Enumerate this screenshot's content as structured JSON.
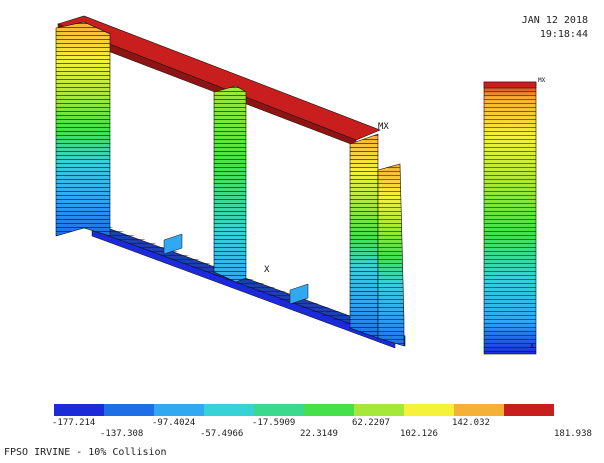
{
  "header": {
    "date": "JAN 12 2018",
    "time": "19:18:44"
  },
  "markers": {
    "max": "MX",
    "min": "X"
  },
  "legend": {
    "colors": [
      "#1b2bd9",
      "#1e6ee6",
      "#32a8f0",
      "#37d2d6",
      "#3bd98e",
      "#47e04a",
      "#a6e83a",
      "#f5f23a",
      "#f5b038",
      "#c81e1e"
    ],
    "labels_top": [
      "-177.214",
      "-97.4024",
      "-17.5909",
      "62.2207",
      "142.032"
    ],
    "labels_bottom": [
      "-137.308",
      "-57.4966",
      "22.3149",
      "102.126",
      "181.938"
    ]
  },
  "caption": "FPSO IRVINE - 10% Collision"
}
